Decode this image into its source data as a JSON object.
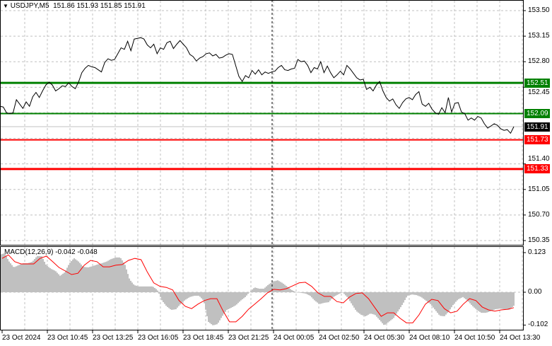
{
  "header": {
    "symbol": "USDJPY,M5",
    "ohlc": "151.86 151.93 151.85 151.91",
    "menu_icon": "triangle-down-icon"
  },
  "price_axis": {
    "ticks": [
      "153.50",
      "153.15",
      "152.80",
      "152.45",
      "151.40",
      "151.05",
      "150.70",
      "150.35"
    ],
    "tick_values": [
      153.5,
      153.15,
      152.8,
      152.45,
      151.4,
      151.05,
      150.7,
      150.35
    ],
    "grid_values": [
      153.5,
      153.15,
      152.8,
      152.45,
      152.1,
      151.75,
      151.4,
      151.05,
      150.7,
      150.35
    ],
    "range": [
      150.35,
      153.5
    ]
  },
  "levels": [
    {
      "label": "152.51",
      "value": 152.51,
      "color": "#008000",
      "weight": "thick"
    },
    {
      "label": "152.09",
      "value": 152.09,
      "color": "#008000",
      "weight": "normal"
    },
    {
      "label": "151.73",
      "value": 151.73,
      "color": "#ff0000",
      "weight": "normal"
    },
    {
      "label": "151.33",
      "value": 151.33,
      "color": "#ff0000",
      "weight": "thick"
    }
  ],
  "current_price": {
    "label": "151.91",
    "value": 151.91,
    "color": "#000000"
  },
  "macd": {
    "title": "MACD(12,26,9) -0.042 -0.048",
    "axis_ticks": [
      "0.123",
      "0.00",
      "-0.102"
    ],
    "axis_values": [
      0.123,
      0.0,
      -0.102
    ],
    "histogram_color": "#c0c0c0",
    "signal_color": "#ff0000"
  },
  "time_axis": {
    "labels": [
      "23 Oct 2024",
      "23 Oct 10:45",
      "23 Oct 13:25",
      "23 Oct 16:05",
      "23 Oct 18:45",
      "23 Oct 21:25",
      "24 Oct 00:05",
      "24 Oct 02:50",
      "24 Oct 05:30",
      "24 Oct 08:10",
      "24 Oct 10:50",
      "24 Oct 13:30"
    ]
  },
  "chart_data": {
    "type": "line",
    "price_close": [
      152.19,
      152.18,
      152.1,
      152.09,
      152.1,
      152.28,
      152.22,
      152.16,
      152.25,
      152.19,
      152.32,
      152.38,
      152.31,
      152.4,
      152.48,
      152.52,
      152.48,
      152.4,
      152.43,
      152.47,
      152.46,
      152.51,
      152.46,
      152.43,
      152.52,
      152.65,
      152.71,
      152.75,
      152.73,
      152.72,
      152.69,
      152.66,
      152.79,
      152.84,
      152.82,
      152.83,
      152.91,
      152.99,
      152.97,
      153.08,
      152.95,
      153.11,
      153.12,
      153.13,
      153.11,
      153.03,
      152.99,
      153.04,
      152.91,
      152.99,
      152.97,
      153.06,
      153.08,
      152.98,
      153.04,
      153.09,
      153.04,
      152.99,
      152.9,
      152.87,
      152.81,
      152.85,
      152.87,
      152.91,
      152.92,
      152.88,
      152.9,
      152.85,
      152.86,
      152.89,
      152.91,
      152.9,
      152.75,
      152.6,
      152.53,
      152.61,
      152.58,
      152.68,
      152.63,
      152.69,
      152.62,
      152.66,
      152.64,
      152.66,
      152.67,
      152.72,
      152.75,
      152.69,
      152.68,
      152.7,
      152.71,
      152.83,
      152.8,
      152.81,
      152.75,
      152.65,
      152.72,
      152.7,
      152.8,
      152.65,
      152.74,
      152.65,
      152.58,
      152.62,
      152.67,
      152.62,
      152.75,
      152.7,
      152.64,
      152.58,
      152.55,
      152.56,
      152.42,
      152.45,
      152.4,
      152.48,
      152.53,
      152.4,
      152.31,
      152.26,
      152.29,
      152.21,
      152.16,
      152.24,
      152.29,
      152.31,
      152.28,
      152.35,
      152.39,
      152.22,
      152.19,
      152.23,
      152.15,
      152.1,
      152.08,
      152.17,
      152.1,
      152.31,
      152.11,
      152.23,
      152.24,
      152.11,
      152.09,
      152.0,
      152.03,
      152.0,
      152.05,
      152.03,
      151.95,
      151.89,
      151.92,
      151.95,
      151.93,
      151.88,
      151.86,
      151.87,
      151.82,
      151.91
    ],
    "macd_histogram": [
      0.117,
      0.121,
      0.095,
      0.077,
      0.084,
      0.09,
      0.09,
      0.095,
      0.112,
      0.112,
      0.084,
      0.073,
      0.066,
      0.051,
      0.062,
      0.09,
      0.106,
      0.095,
      0.079,
      0.077,
      0.081,
      0.086,
      0.09,
      0.095,
      0.103,
      0.108,
      0.108,
      0.086,
      0.04,
      0.022,
      0.018,
      0.018,
      0.018,
      0.018,
      0.007,
      -0.026,
      -0.044,
      -0.055,
      -0.053,
      -0.037,
      -0.024,
      -0.015,
      -0.011,
      -0.011,
      -0.026,
      -0.092,
      -0.103,
      -0.099,
      -0.075,
      -0.055,
      -0.048,
      -0.04,
      -0.026,
      -0.015,
      0.002,
      0.015,
      0.011,
      0.011,
      0.024,
      0.033,
      0.037,
      0.029,
      0.018,
      0.007,
      0.0,
      -0.002,
      -0.004,
      -0.011,
      -0.026,
      -0.037,
      -0.033,
      -0.031,
      -0.015,
      -0.007,
      0.0,
      -0.015,
      -0.037,
      -0.059,
      -0.07,
      -0.075,
      -0.066,
      -0.07,
      -0.086,
      -0.103,
      -0.092,
      -0.081,
      -0.059,
      -0.037,
      -0.011,
      -0.007,
      -0.009,
      -0.015,
      -0.026,
      -0.037,
      -0.055,
      -0.073,
      -0.075,
      -0.059,
      -0.037,
      -0.022,
      -0.015,
      -0.026,
      -0.042,
      -0.055,
      -0.064,
      -0.064,
      -0.059,
      -0.053,
      -0.051,
      -0.053,
      -0.055,
      -0.042
    ],
    "macd_signal": [
      0.105,
      0.116,
      0.095,
      0.088,
      0.088,
      0.088,
      0.105,
      0.112,
      0.095,
      0.077,
      0.066,
      0.055,
      0.059,
      0.084,
      0.099,
      0.095,
      0.079,
      0.079,
      0.084,
      0.086,
      0.099,
      0.105,
      0.101,
      0.062,
      0.029,
      0.018,
      0.015,
      0.007,
      -0.026,
      -0.044,
      -0.051,
      -0.037,
      -0.026,
      -0.02,
      -0.02,
      -0.059,
      -0.092,
      -0.092,
      -0.075,
      -0.053,
      -0.037,
      -0.02,
      -0.002,
      0.009,
      0.007,
      0.011,
      0.02,
      0.029,
      0.031,
      0.018,
      -0.002,
      -0.013,
      -0.013,
      -0.029,
      -0.033,
      -0.015,
      -0.004,
      -0.002,
      -0.02,
      -0.048,
      -0.075,
      -0.064,
      -0.064,
      -0.081,
      -0.095,
      -0.095,
      -0.07,
      -0.037,
      -0.022,
      -0.026,
      -0.051,
      -0.064,
      -0.059,
      -0.037,
      -0.02,
      -0.026,
      -0.046,
      -0.055,
      -0.059,
      -0.055,
      -0.053,
      -0.048
    ]
  }
}
